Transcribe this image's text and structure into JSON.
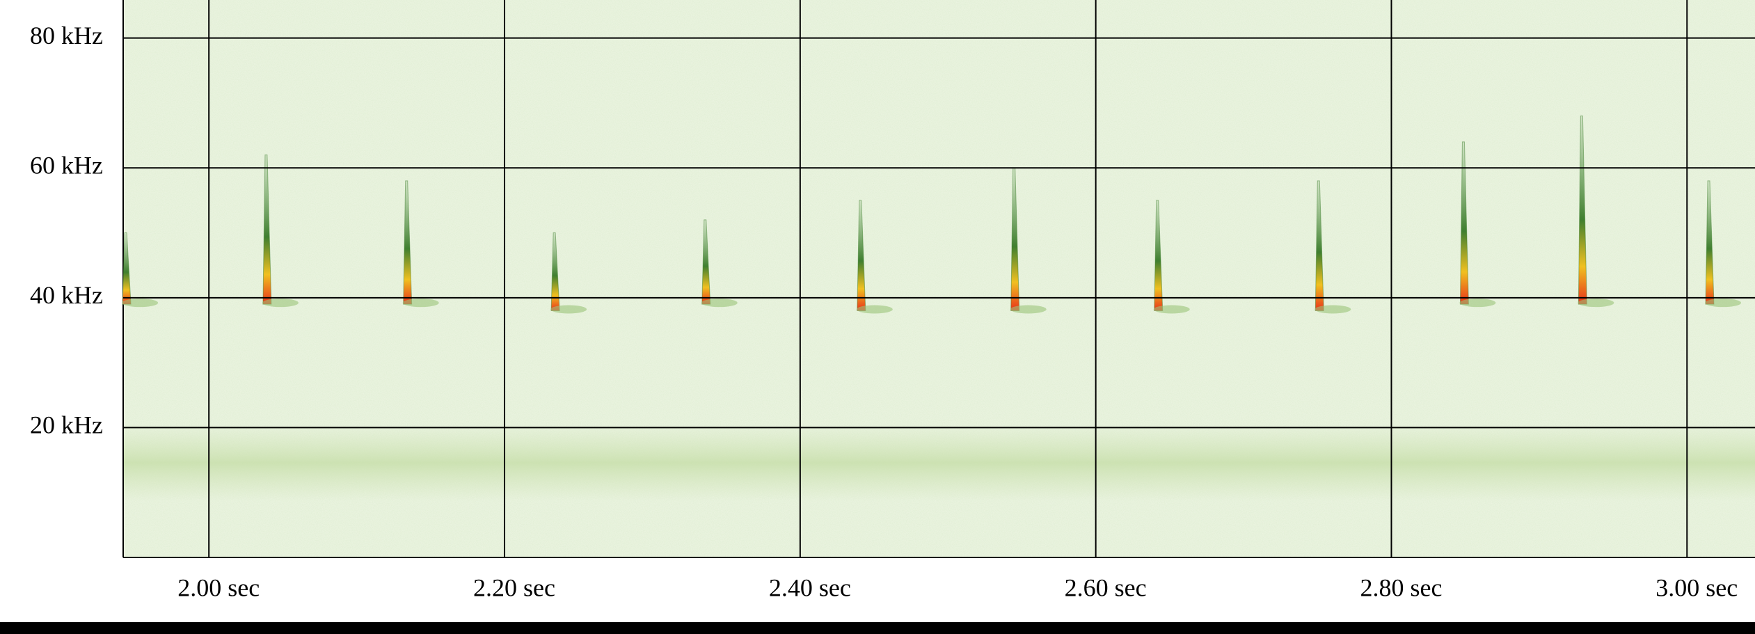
{
  "chart_data": {
    "type": "spectrogram",
    "xlim": [
      1.942,
      3.046
    ],
    "ylim": [
      0,
      85.86
    ],
    "xticks": [
      {
        "value": 2.0,
        "label": "2.00 sec"
      },
      {
        "value": 2.2,
        "label": "2.20 sec"
      },
      {
        "value": 2.4,
        "label": "2.40 sec"
      },
      {
        "value": 2.6,
        "label": "2.60 sec"
      },
      {
        "value": 2.8,
        "label": "2.80 sec"
      },
      {
        "value": 3.0,
        "label": "3.00 sec"
      }
    ],
    "yticks": [
      {
        "value": 20,
        "label": "20 kHz"
      },
      {
        "value": 40,
        "label": "40 kHz"
      },
      {
        "value": 60,
        "label": "60 kHz"
      },
      {
        "value": 80,
        "label": "80 kHz"
      }
    ],
    "grid": true,
    "calls": {
      "x": [
        1.943,
        2.038,
        2.133,
        2.233,
        2.335,
        2.44,
        2.544,
        2.641,
        2.75,
        2.848,
        2.928,
        3.014
      ],
      "high": [
        50,
        62,
        58,
        50,
        52,
        55,
        60,
        55,
        58,
        64,
        68,
        58
      ],
      "low": [
        39,
        39,
        39,
        38,
        39,
        38,
        38,
        38,
        38,
        39,
        39,
        39
      ]
    }
  }
}
